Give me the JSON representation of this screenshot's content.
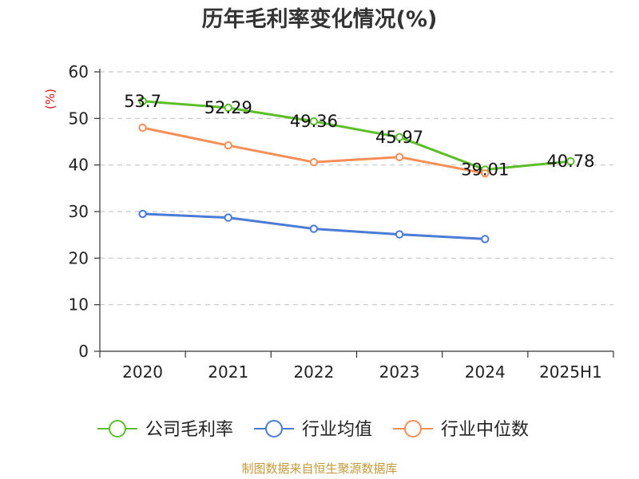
{
  "chart_data": {
    "type": "line",
    "title": "历年毛利率变化情况(%)",
    "yunit": "(%)",
    "categories": [
      "2020",
      "2021",
      "2022",
      "2023",
      "2024",
      "2025H1"
    ],
    "ylim": [
      0,
      60
    ],
    "yticks": [
      0,
      10,
      20,
      30,
      40,
      50,
      60
    ],
    "grid": true,
    "legend_position": "bottom",
    "series": [
      {
        "name": "公司毛利率",
        "color": "#5cbf2a",
        "labels": true,
        "values": [
          53.7,
          52.29,
          49.36,
          45.97,
          39.01,
          40.78
        ]
      },
      {
        "name": "行业均值",
        "color": "#4a7bd6",
        "labels": false,
        "values": [
          29.5,
          28.7,
          26.3,
          25.1,
          24.1,
          null
        ]
      },
      {
        "name": "行业中位数",
        "color": "#f58f57",
        "labels": false,
        "values": [
          48.0,
          44.2,
          40.6,
          41.7,
          38.2,
          null
        ]
      }
    ]
  },
  "source_note": "制图数据来自恒生聚源数据库"
}
